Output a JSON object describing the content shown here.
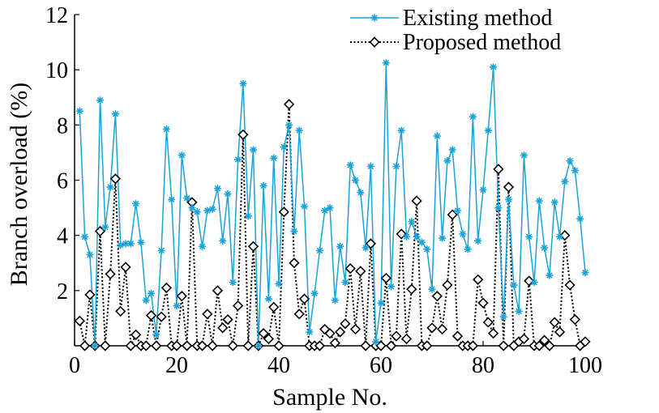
{
  "chart_data": {
    "type": "line",
    "title": "",
    "xlabel": "Sample No.",
    "ylabel": "Branch overload (%)",
    "xlim": [
      0,
      100
    ],
    "ylim": [
      0,
      12
    ],
    "xticks": [
      0,
      20,
      40,
      60,
      80,
      100
    ],
    "yticks": [
      2,
      4,
      6,
      8,
      10,
      12
    ],
    "xtick_labels": [
      "0",
      "20",
      "40",
      "60",
      "80",
      "100"
    ],
    "ytick_labels": [
      "2",
      "4",
      "6",
      "8",
      "10",
      "12"
    ],
    "grid": false,
    "legend_position": "top-right",
    "x": [
      1,
      2,
      3,
      4,
      5,
      6,
      7,
      8,
      9,
      10,
      11,
      12,
      13,
      14,
      15,
      16,
      17,
      18,
      19,
      20,
      21,
      22,
      23,
      24,
      25,
      26,
      27,
      28,
      29,
      30,
      31,
      32,
      33,
      34,
      35,
      36,
      37,
      38,
      39,
      40,
      41,
      42,
      43,
      44,
      45,
      46,
      47,
      48,
      49,
      50,
      51,
      52,
      53,
      54,
      55,
      56,
      57,
      58,
      59,
      60,
      61,
      62,
      63,
      64,
      65,
      66,
      67,
      68,
      69,
      70,
      71,
      72,
      73,
      74,
      75,
      76,
      77,
      78,
      79,
      80,
      81,
      82,
      83,
      84,
      85,
      86,
      87,
      88,
      89,
      90,
      91,
      92,
      93,
      94,
      95,
      96,
      97,
      98,
      99,
      100
    ],
    "series": [
      {
        "name": "Existing method",
        "color": "#1aa3d8",
        "marker": "asterisk",
        "line_style": "solid",
        "values": [
          8.5,
          3.95,
          3.3,
          0,
          8.9,
          4.3,
          5.75,
          8.4,
          3.65,
          3.7,
          3.7,
          5.15,
          3.75,
          1.65,
          1.9,
          0.4,
          3.45,
          7.85,
          5.3,
          1.45,
          6.9,
          5.35,
          5.0,
          4.85,
          3.6,
          4.9,
          4.95,
          5.7,
          3.8,
          5.5,
          2.3,
          6.75,
          9.5,
          4.7,
          7.1,
          0,
          5.8,
          1.7,
          6.8,
          2.25,
          7.2,
          8.0,
          4.15,
          7.8,
          5.05,
          0.5,
          1.9,
          3.45,
          4.9,
          5.0,
          1.65,
          3.6,
          2.3,
          6.55,
          6.0,
          5.55,
          3.55,
          6.5,
          0.15,
          1.55,
          10.25,
          2.15,
          6.5,
          7.8,
          3.95,
          4.5,
          3.95,
          3.75,
          3.5,
          2.05,
          7.6,
          3.9,
          6.7,
          7.1,
          4.9,
          4.05,
          3.5,
          8.3,
          3.8,
          5.65,
          7.8,
          10.1,
          5.0,
          1.05,
          5.3,
          2.2,
          1.25,
          6.9,
          3.95,
          2.3,
          5.25,
          3.55,
          2.55,
          5.2,
          3.95,
          5.95,
          6.7,
          6.35,
          4.6,
          2.65
        ]
      },
      {
        "name": "Proposed method",
        "color": "#000000",
        "marker": "diamond",
        "line_style": "dotted",
        "values": [
          0.9,
          0,
          1.85,
          0,
          4.15,
          0,
          2.6,
          6.05,
          1.25,
          2.85,
          0,
          0.4,
          0,
          0,
          1.1,
          0,
          1.05,
          2.1,
          0,
          0,
          1.8,
          0,
          5.2,
          0,
          0,
          1.15,
          0,
          2.0,
          0.65,
          0.95,
          0,
          1.45,
          7.65,
          0,
          3.6,
          0,
          0.45,
          0.25,
          1.4,
          0,
          4.85,
          8.75,
          3.0,
          1.15,
          1.7,
          0,
          0,
          0,
          0.6,
          0.45,
          0.1,
          0.5,
          0.8,
          2.8,
          0.6,
          2.7,
          0,
          3.7,
          0,
          0,
          2.45,
          0,
          0.35,
          4.05,
          0.25,
          2.05,
          5.25,
          0,
          0,
          0.65,
          1.8,
          0.6,
          2.2,
          4.75,
          0.35,
          0,
          0,
          0,
          2.4,
          1.55,
          0.85,
          0.45,
          6.4,
          0,
          5.75,
          0,
          0.15,
          0.25,
          2.35,
          0,
          0,
          0.2,
          0,
          0.85,
          0.5,
          4.0,
          2.2,
          0.95,
          0,
          0.15
        ]
      }
    ]
  }
}
